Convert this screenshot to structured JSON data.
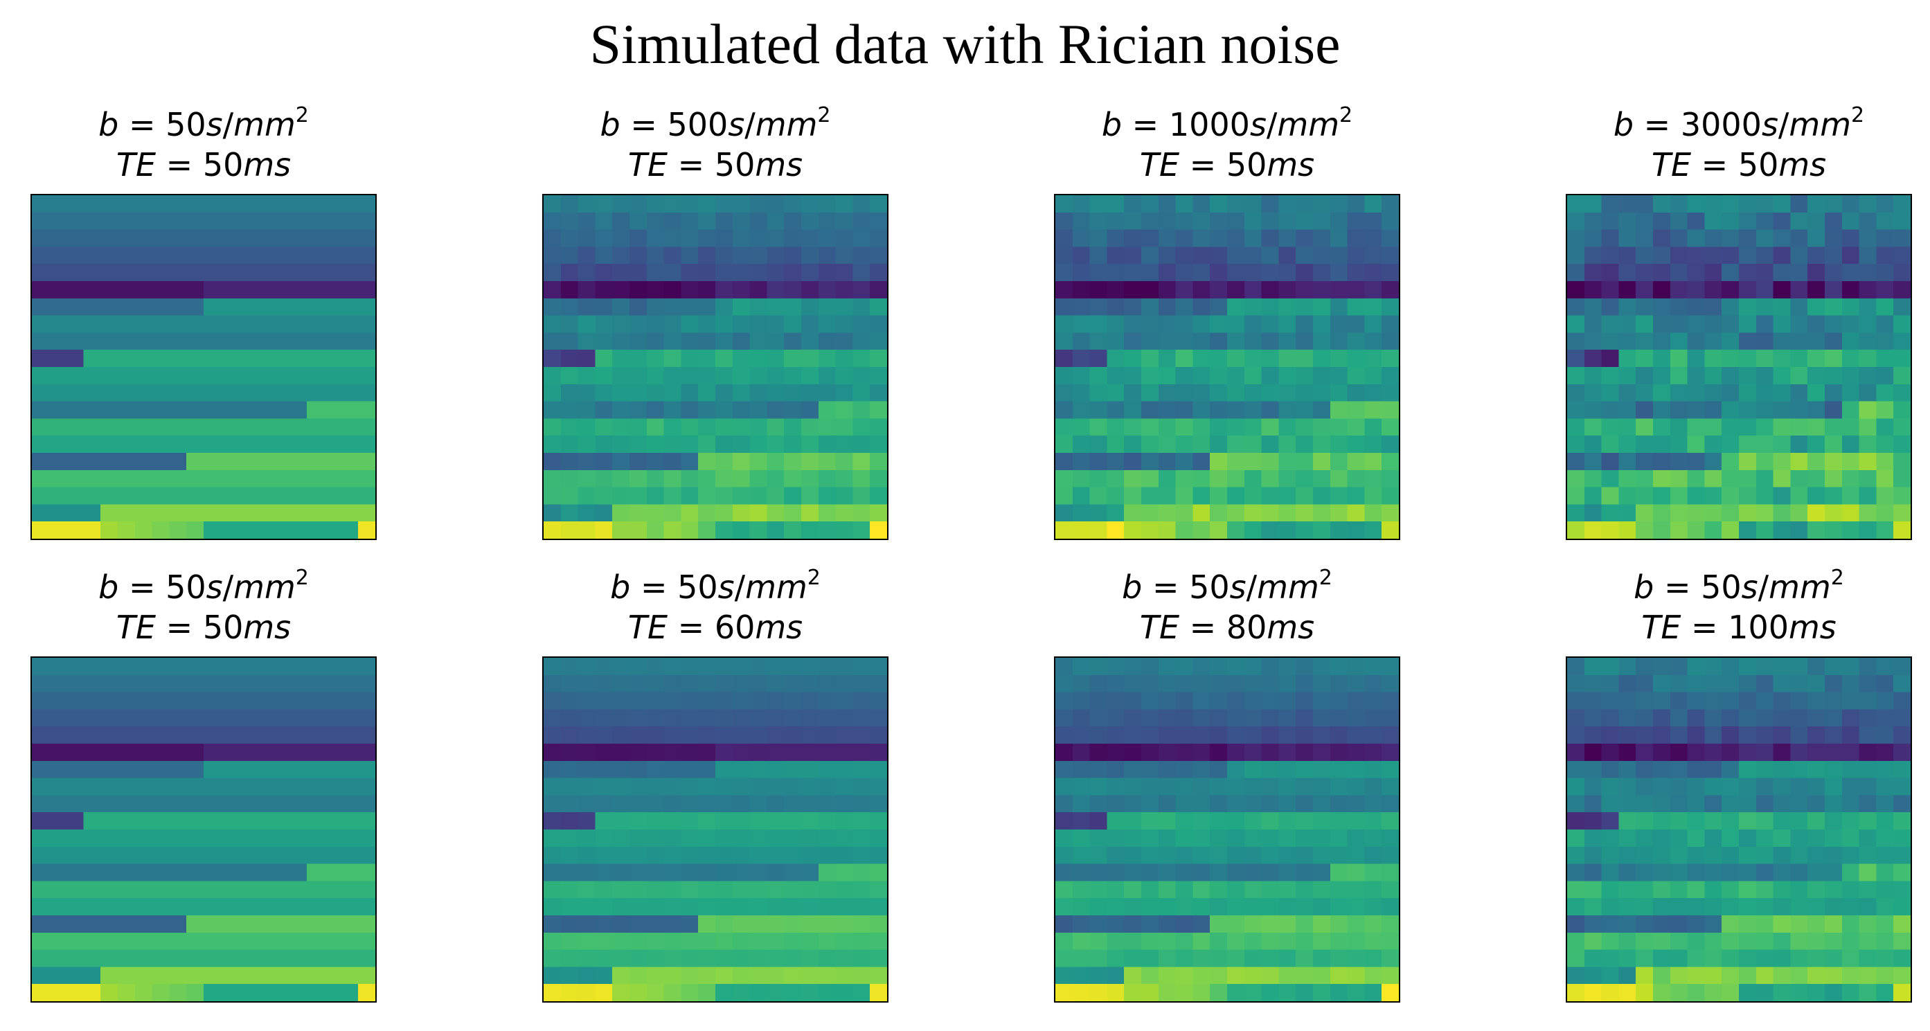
{
  "figure": {
    "title": "Simulated data with Rician noise"
  },
  "chart_data": [
    {
      "type": "heatmap",
      "title_line1": "b = 50s/mm2",
      "title_line2": "TE = 50ms",
      "b_value": 50,
      "te_ms": 50,
      "grid": [
        20,
        20
      ],
      "colormap": "viridis",
      "noise_level": 0.0
    },
    {
      "type": "heatmap",
      "title_line1": "b = 500s/mm2",
      "title_line2": "TE = 50ms",
      "b_value": 500,
      "te_ms": 50,
      "grid": [
        20,
        20
      ],
      "colormap": "viridis",
      "noise_level": 0.045
    },
    {
      "type": "heatmap",
      "title_line1": "b = 1000s/mm2",
      "title_line2": "TE = 50ms",
      "b_value": 1000,
      "te_ms": 50,
      "grid": [
        20,
        20
      ],
      "colormap": "viridis",
      "noise_level": 0.07
    },
    {
      "type": "heatmap",
      "title_line1": "b = 3000s/mm2",
      "title_line2": "TE = 50ms",
      "b_value": 3000,
      "te_ms": 50,
      "grid": [
        20,
        20
      ],
      "colormap": "viridis",
      "noise_level": 0.11
    },
    {
      "type": "heatmap",
      "title_line1": "b = 50s/mm2",
      "title_line2": "TE = 50ms",
      "b_value": 50,
      "te_ms": 50,
      "grid": [
        20,
        20
      ],
      "colormap": "viridis",
      "noise_level": 0.0
    },
    {
      "type": "heatmap",
      "title_line1": "b = 50s/mm2",
      "title_line2": "TE = 60ms",
      "b_value": 50,
      "te_ms": 60,
      "grid": [
        20,
        20
      ],
      "colormap": "viridis",
      "noise_level": 0.01
    },
    {
      "type": "heatmap",
      "title_line1": "b = 50s/mm2",
      "title_line2": "TE = 80ms",
      "b_value": 50,
      "te_ms": 80,
      "grid": [
        20,
        20
      ],
      "colormap": "viridis",
      "noise_level": 0.03
    },
    {
      "type": "heatmap",
      "title_line1": "b = 50s/mm2",
      "title_line2": "TE = 100ms",
      "b_value": 50,
      "te_ms": 100,
      "grid": [
        20,
        20
      ],
      "colormap": "viridis",
      "noise_level": 0.06
    }
  ]
}
